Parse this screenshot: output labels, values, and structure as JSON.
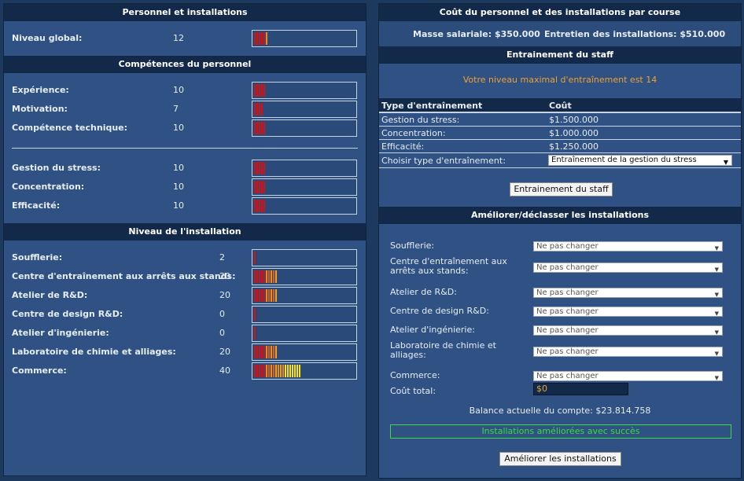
{
  "left": {
    "staff_header": "Personnel et installations",
    "global": {
      "label": "Niveau global:",
      "value": "12",
      "level": 12
    },
    "skills_header": "Compétences du personnel",
    "skills": [
      {
        "label": "Expérience:",
        "value": "10",
        "level": 10
      },
      {
        "label": "Motivation:",
        "value": "7",
        "level": 7
      },
      {
        "label": "Compétence technique:",
        "value": "10",
        "level": 10
      }
    ],
    "skills2": [
      {
        "label": "Gestion du stress:",
        "value": "10",
        "level": 10
      },
      {
        "label": "Concentration:",
        "value": "10",
        "level": 10
      },
      {
        "label": "Efficacité:",
        "value": "10",
        "level": 10
      }
    ],
    "facilities_header": "Niveau de l'installation",
    "facilities": [
      {
        "label": "Soufflerie:",
        "value": "2",
        "level": 2
      },
      {
        "label": "Centre d'entraînement aux arrêts aux stands:",
        "value": "20",
        "level": 20
      },
      {
        "label": "Atelier de R&D:",
        "value": "20",
        "level": 20
      },
      {
        "label": "Centre de design R&D:",
        "value": "0",
        "level": 0
      },
      {
        "label": "Atelier d'ingénierie:",
        "value": "0",
        "level": 0
      },
      {
        "label": "Laboratoire de chimie et alliages:",
        "value": "20",
        "level": 20
      },
      {
        "label": "Commerce:",
        "value": "40",
        "level": 40
      }
    ]
  },
  "right": {
    "cost_header": "Coût du personnel et des installations par course",
    "salary": "Masse salariale: $350.000",
    "maintenance": "Entretien des installations: $510.000",
    "training_header": "Entrainement du staff",
    "max_training": "Votre niveau maximal d'entraînement est 14",
    "table": {
      "col_type": "Type d'entraînement",
      "col_cost": "Coût",
      "rows": [
        {
          "type": "Gestion du stress:",
          "cost": "$1.500.000"
        },
        {
          "type": "Concentration:",
          "cost": "$1.000.000"
        },
        {
          "type": "Efficacité:",
          "cost": "$1.250.000"
        }
      ],
      "choose_label": "Choisir type d'entraînement:",
      "choose_value": "Entraînement de la gestion du stress"
    },
    "train_button": "Entrainement du staff",
    "upgrade_header": "Améliorer/déclasser les installations",
    "upgrades": [
      {
        "label": "Soufflerie:",
        "value": "Ne pas changer"
      },
      {
        "label": "Centre d'entraînement aux arrêts aux stands:",
        "value": "Ne pas changer"
      },
      {
        "label": "Atelier de R&D:",
        "value": "Ne pas changer"
      },
      {
        "label": "Centre de design R&D:",
        "value": "Ne pas changer"
      },
      {
        "label": "Atelier d'ingénierie:",
        "value": "Ne pas changer"
      },
      {
        "label": "Laboratoire de chimie et alliages:",
        "value": "Ne pas changer"
      },
      {
        "label": "Commerce:",
        "value": "Ne pas changer"
      }
    ],
    "total_label": "Coût total:",
    "total_value": "$0",
    "balance": "Balance actuelle du compte: $23.814.758",
    "success": "Installations améliorées avec succès",
    "upgrade_button": "Améliorer les installations"
  },
  "colors": {
    "header_bg": "#13294a",
    "panel_bg": "#2f5183",
    "orange_text": "#f0a030",
    "success_green": "#3ddc3d",
    "bar_red": "#d81010",
    "bar_orange": "#f08a10",
    "bar_yellow": "#f8e020"
  }
}
